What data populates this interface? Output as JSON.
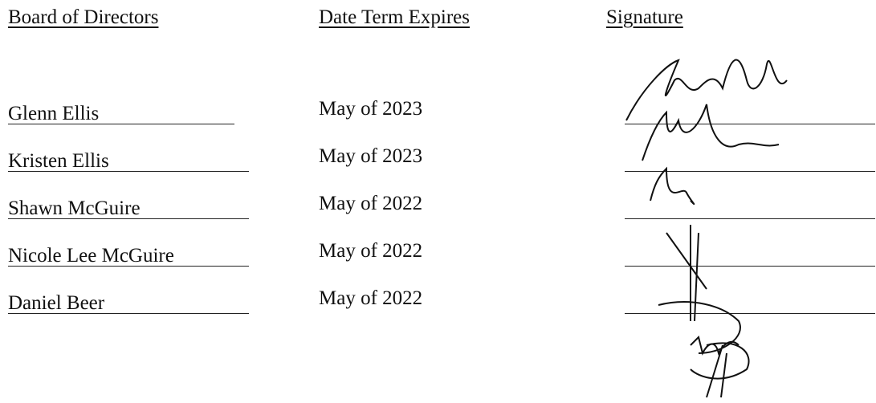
{
  "headers": [
    "Board of Directors",
    "Date Term Expires",
    "Signature"
  ],
  "rows": [
    {
      "name": "Glenn Ellis",
      "term": "May of 2023"
    },
    {
      "name": "Kristen Ellis",
      "term": "May of 2023"
    },
    {
      "name": "Shawn McGuire",
      "term": "May of 2022"
    },
    {
      "name": "Nicole Lee McGuire",
      "term": "May of 2022"
    },
    {
      "name": "Daniel Beer",
      "term": "May of 2022"
    }
  ]
}
